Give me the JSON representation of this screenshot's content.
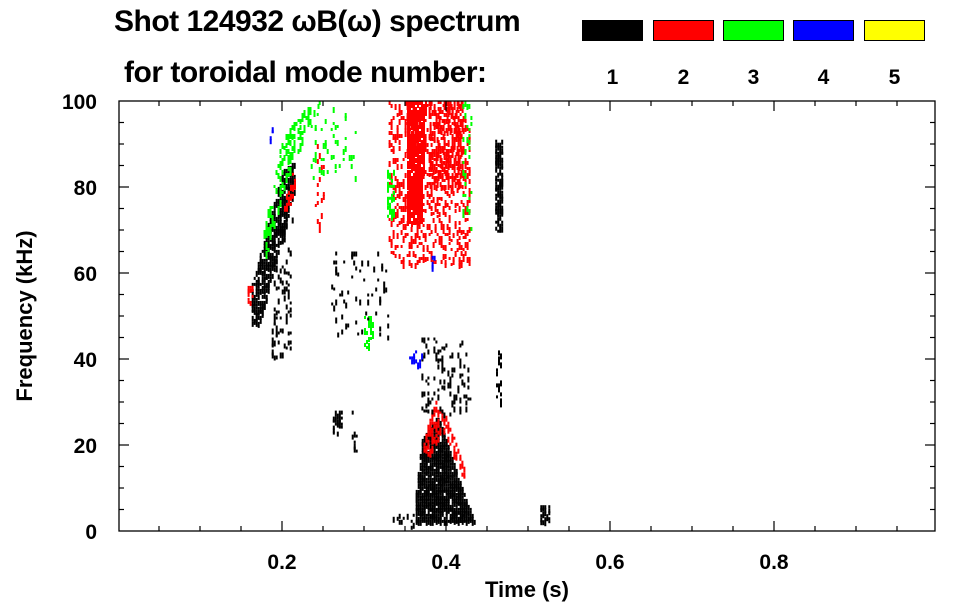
{
  "chart_data": {
    "type": "heatmap",
    "title": "Shot 124932 ωB(ω) spectrum",
    "subtitle": "for toroidal mode number:",
    "xlabel": "Time (s)",
    "ylabel": "Frequency (kHz)",
    "xlim": [
      0.0,
      1.0
    ],
    "ylim": [
      0,
      100
    ],
    "xticks": [
      0.2,
      0.4,
      0.6,
      0.8
    ],
    "xtick_labels": [
      "0.2",
      "0.4",
      "0.6",
      "0.8"
    ],
    "yticks": [
      0,
      20,
      40,
      60,
      80,
      100
    ],
    "ytick_labels": [
      "0",
      "20",
      "40",
      "60",
      "80",
      "100"
    ],
    "legend": [
      {
        "mode": "1",
        "color": "#000000"
      },
      {
        "mode": "2",
        "color": "#ff0000"
      },
      {
        "mode": "3",
        "color": "#00ff00"
      },
      {
        "mode": "4",
        "color": "#0000ff"
      },
      {
        "mode": "5",
        "color": "#ffff00"
      }
    ],
    "features": [
      {
        "mode": 1,
        "density": 0.75,
        "polygon": [
          [
            0.163,
            48
          ],
          [
            0.172,
            48
          ],
          [
            0.216,
            80
          ],
          [
            0.214,
            87
          ],
          [
            0.2,
            84
          ],
          [
            0.163,
            58
          ]
        ]
      },
      {
        "mode": 1,
        "density": 0.2,
        "polygon": [
          [
            0.185,
            40
          ],
          [
            0.21,
            42
          ],
          [
            0.212,
            75
          ],
          [
            0.19,
            70
          ]
        ]
      },
      {
        "mode": 3,
        "density": 0.35,
        "polygon": [
          [
            0.175,
            68
          ],
          [
            0.2,
            92
          ],
          [
            0.235,
            100
          ],
          [
            0.245,
            100
          ],
          [
            0.205,
            82
          ],
          [
            0.18,
            64
          ]
        ]
      },
      {
        "mode": 4,
        "density": 0.4,
        "polygon": [
          [
            0.185,
            91
          ],
          [
            0.192,
            91
          ],
          [
            0.192,
            96
          ],
          [
            0.185,
            96
          ]
        ]
      },
      {
        "mode": 2,
        "density": 0.5,
        "polygon": [
          [
            0.2,
            76
          ],
          [
            0.213,
            84
          ],
          [
            0.218,
            81
          ],
          [
            0.205,
            73
          ]
        ]
      },
      {
        "mode": 2,
        "density": 0.5,
        "polygon": [
          [
            0.158,
            53
          ],
          [
            0.164,
            53
          ],
          [
            0.164,
            57
          ],
          [
            0.158,
            57
          ]
        ]
      },
      {
        "mode": 3,
        "density": 0.1,
        "polygon": [
          [
            0.235,
            82
          ],
          [
            0.29,
            82
          ],
          [
            0.29,
            100
          ],
          [
            0.235,
            100
          ]
        ]
      },
      {
        "mode": 2,
        "density": 0.15,
        "polygon": [
          [
            0.24,
            70
          ],
          [
            0.25,
            70
          ],
          [
            0.25,
            90
          ],
          [
            0.24,
            90
          ]
        ]
      },
      {
        "mode": 2,
        "density": 0.25,
        "polygon": [
          [
            0.33,
            62
          ],
          [
            0.43,
            62
          ],
          [
            0.43,
            100
          ],
          [
            0.33,
            100
          ]
        ]
      },
      {
        "mode": 2,
        "density": 0.9,
        "polygon": [
          [
            0.352,
            72
          ],
          [
            0.37,
            72
          ],
          [
            0.375,
            100
          ],
          [
            0.35,
            100
          ]
        ]
      },
      {
        "mode": 2,
        "density": 0.5,
        "polygon": [
          [
            0.38,
            80
          ],
          [
            0.42,
            80
          ],
          [
            0.42,
            100
          ],
          [
            0.38,
            100
          ]
        ]
      },
      {
        "mode": 3,
        "density": 0.45,
        "polygon": [
          [
            0.328,
            73
          ],
          [
            0.336,
            73
          ],
          [
            0.336,
            84
          ],
          [
            0.328,
            84
          ]
        ]
      },
      {
        "mode": 3,
        "density": 0.4,
        "polygon": [
          [
            0.3,
            43
          ],
          [
            0.31,
            43
          ],
          [
            0.31,
            50
          ],
          [
            0.3,
            50
          ]
        ]
      },
      {
        "mode": 3,
        "density": 0.15,
        "polygon": [
          [
            0.42,
            70
          ],
          [
            0.43,
            70
          ],
          [
            0.43,
            100
          ],
          [
            0.42,
            100
          ]
        ]
      },
      {
        "mode": 1,
        "density": 0.9,
        "polygon": [
          [
            0.363,
            2
          ],
          [
            0.435,
            2
          ],
          [
            0.415,
            13
          ],
          [
            0.39,
            27
          ],
          [
            0.37,
            22
          ],
          [
            0.363,
            10
          ]
        ]
      },
      {
        "mode": 2,
        "density": 0.55,
        "polygon": [
          [
            0.37,
            19
          ],
          [
            0.385,
            31
          ],
          [
            0.4,
            27
          ],
          [
            0.425,
            13
          ],
          [
            0.42,
            12
          ],
          [
            0.395,
            24
          ],
          [
            0.38,
            18
          ]
        ]
      },
      {
        "mode": 1,
        "density": 0.15,
        "polygon": [
          [
            0.37,
            27
          ],
          [
            0.43,
            27
          ],
          [
            0.43,
            45
          ],
          [
            0.37,
            45
          ]
        ]
      },
      {
        "mode": 1,
        "density": 0.8,
        "polygon": [
          [
            0.46,
            70
          ],
          [
            0.468,
            70
          ],
          [
            0.468,
            91
          ],
          [
            0.46,
            91
          ]
        ]
      },
      {
        "mode": 1,
        "density": 0.4,
        "polygon": [
          [
            0.461,
            30
          ],
          [
            0.466,
            30
          ],
          [
            0.466,
            42
          ],
          [
            0.461,
            42
          ]
        ]
      },
      {
        "mode": 1,
        "density": 0.5,
        "polygon": [
          [
            0.262,
            23
          ],
          [
            0.272,
            23
          ],
          [
            0.272,
            28
          ],
          [
            0.262,
            28
          ]
        ]
      },
      {
        "mode": 1,
        "density": 0.08,
        "polygon": [
          [
            0.26,
            45
          ],
          [
            0.33,
            45
          ],
          [
            0.33,
            65
          ],
          [
            0.26,
            65
          ]
        ]
      },
      {
        "mode": 1,
        "density": 0.2,
        "polygon": [
          [
            0.285,
            18
          ],
          [
            0.29,
            18
          ],
          [
            0.29,
            28
          ],
          [
            0.285,
            28
          ]
        ]
      },
      {
        "mode": 1,
        "density": 0.6,
        "polygon": [
          [
            0.515,
            2
          ],
          [
            0.525,
            2
          ],
          [
            0.525,
            6
          ],
          [
            0.515,
            6
          ]
        ]
      },
      {
        "mode": 1,
        "density": 0.15,
        "polygon": [
          [
            0.335,
            1
          ],
          [
            0.36,
            1
          ],
          [
            0.36,
            4
          ],
          [
            0.335,
            4
          ]
        ]
      },
      {
        "mode": 4,
        "density": 0.3,
        "polygon": [
          [
            0.355,
            38
          ],
          [
            0.37,
            38
          ],
          [
            0.37,
            42
          ],
          [
            0.355,
            42
          ]
        ]
      },
      {
        "mode": 4,
        "density": 0.3,
        "polygon": [
          [
            0.38,
            60
          ],
          [
            0.385,
            60
          ],
          [
            0.385,
            64
          ],
          [
            0.38,
            64
          ]
        ]
      }
    ]
  }
}
